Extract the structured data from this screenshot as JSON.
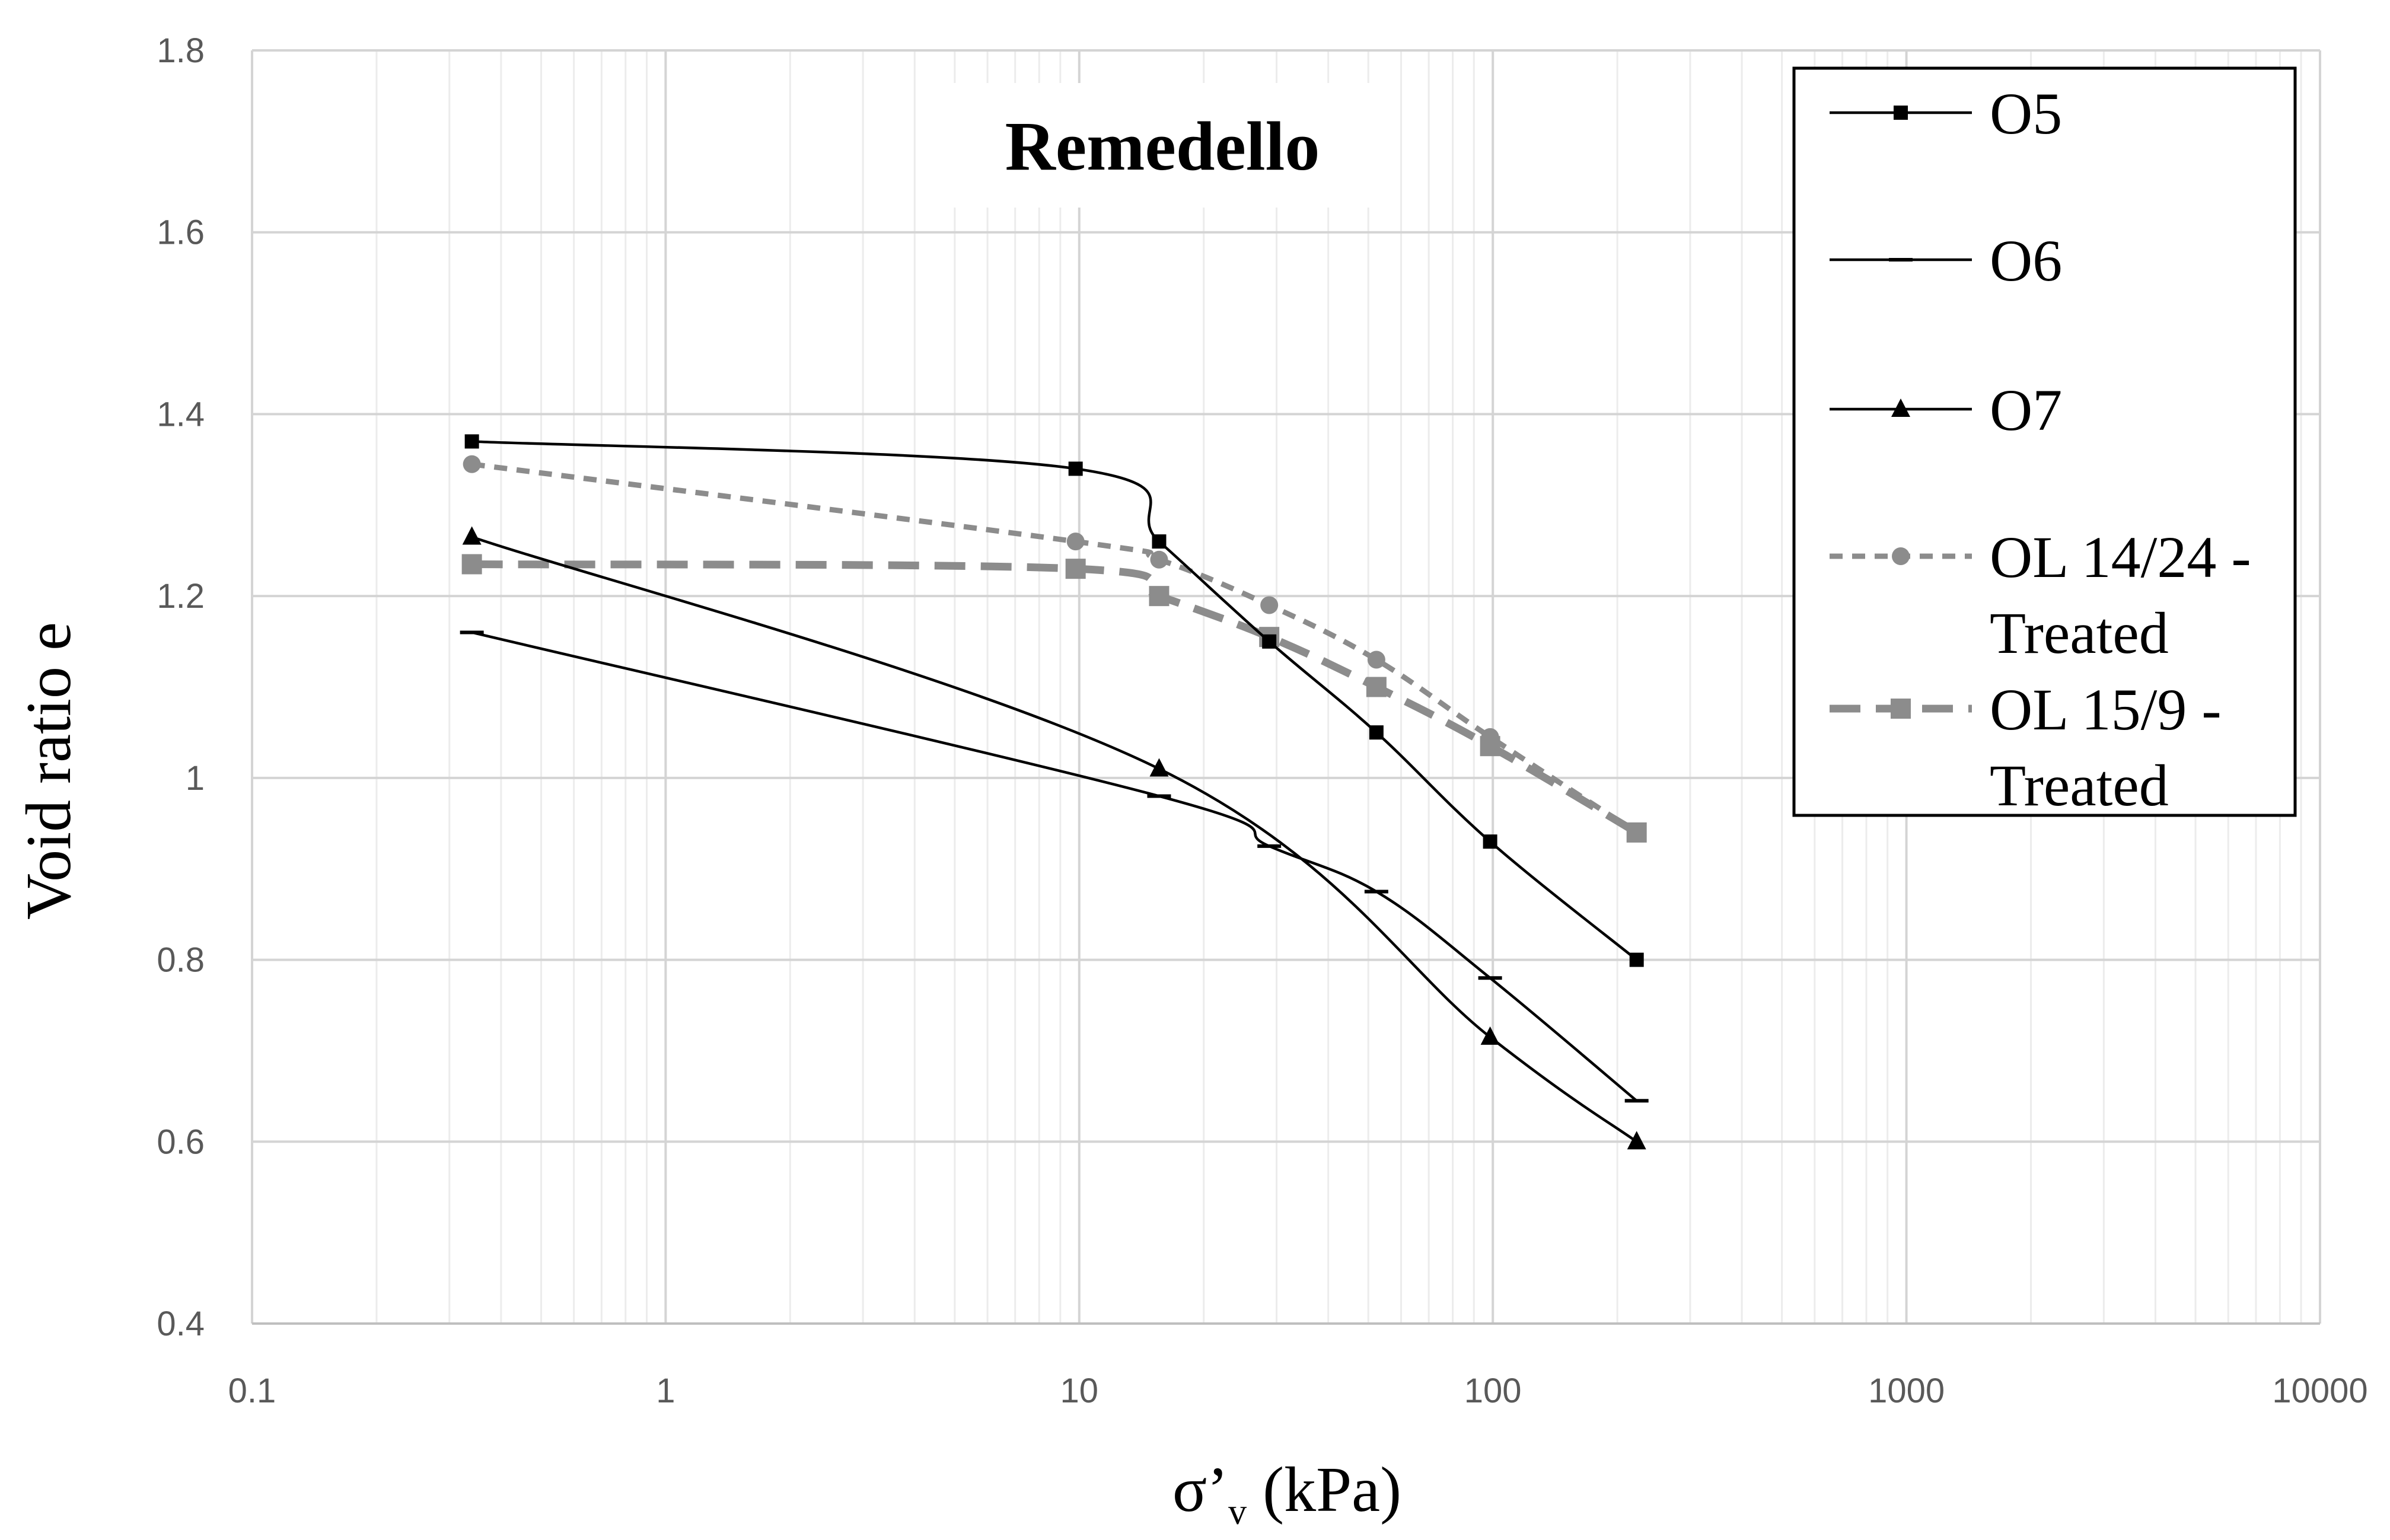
{
  "chart_data": {
    "type": "line",
    "title": "Remedello",
    "xlabel": "σ’",
    "xlabel_sub": "v",
    "xlabel_unit": " (kPa)",
    "ylabel": "Void ratio e",
    "xscale": "log",
    "xlim": [
      0.1,
      10000
    ],
    "ylim": [
      0.4,
      1.8
    ],
    "xticks": [
      0.1,
      1,
      10,
      100,
      1000,
      10000
    ],
    "xtick_labels": [
      "0.1",
      "1",
      "10",
      "100",
      "1000",
      "10000"
    ],
    "yticks": [
      0.4,
      0.6,
      0.8,
      1.0,
      1.2,
      1.4,
      1.6,
      1.8
    ],
    "ytick_labels": [
      "0.4",
      "0.6",
      "0.8",
      "1",
      "1.2",
      "1.4",
      "1.6",
      "1.8"
    ],
    "grid": true,
    "legend_position": "top-right",
    "series": [
      {
        "name": "O5",
        "color": "#000000",
        "dash": "solid",
        "marker": "square",
        "x": [
          0.34,
          9.8,
          15.6,
          28.8,
          52.3,
          98.5,
          222.7
        ],
        "y": [
          1.37,
          1.34,
          1.26,
          1.15,
          1.05,
          0.93,
          0.8
        ]
      },
      {
        "name": "O6",
        "color": "#000000",
        "dash": "solid",
        "marker": "dash",
        "x": [
          0.34,
          15.6,
          28.8,
          52.3,
          98.5,
          222.7
        ],
        "y": [
          1.16,
          0.98,
          0.925,
          0.875,
          0.78,
          0.645
        ]
      },
      {
        "name": "O7",
        "color": "#000000",
        "dash": "solid",
        "marker": "triangle",
        "x": [
          0.34,
          15.6,
          98.5,
          222.7
        ],
        "y": [
          1.265,
          1.01,
          0.715,
          0.6
        ]
      },
      {
        "name": "OL14/24 - Treated",
        "legend_lines": [
          "OL 14/24 -",
          "Treated"
        ],
        "color": "#8c8c8c",
        "dash": "short",
        "marker": "circle",
        "x": [
          0.34,
          9.8,
          15.6,
          28.8,
          52.3,
          98.5,
          222.7
        ],
        "y": [
          1.345,
          1.26,
          1.24,
          1.19,
          1.13,
          1.045,
          0.94
        ]
      },
      {
        "name": "OL15/9 - Treated",
        "legend_lines": [
          "OL 15/9 -",
          "Treated"
        ],
        "color": "#8c8c8c",
        "dash": "long",
        "marker": "square",
        "x": [
          0.34,
          9.8,
          15.6,
          28.8,
          52.3,
          98.5,
          222.7
        ],
        "y": [
          1.235,
          1.23,
          1.2,
          1.155,
          1.1,
          1.035,
          0.94
        ]
      }
    ]
  }
}
